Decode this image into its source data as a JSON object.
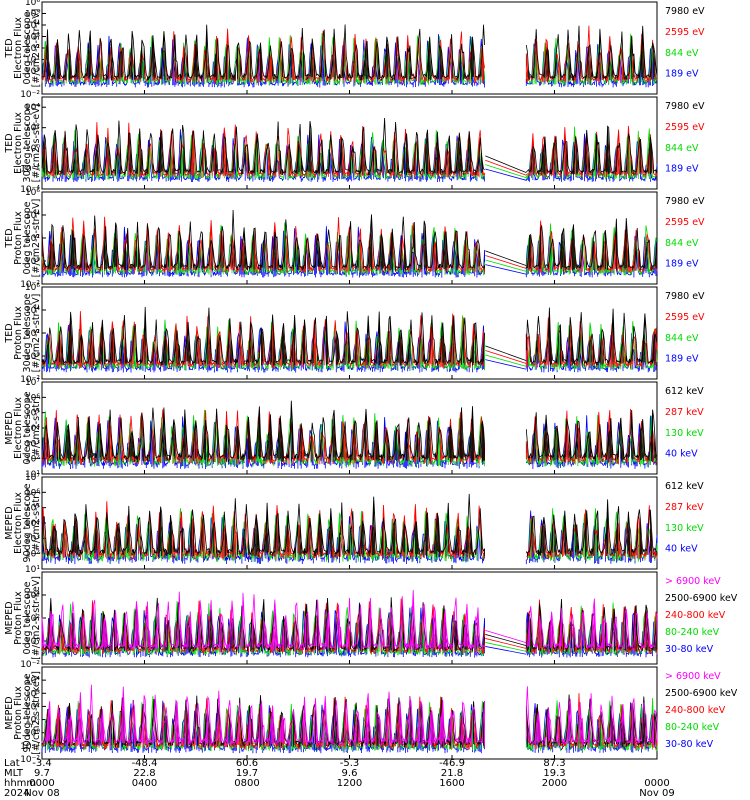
{
  "chart_data": [
    {
      "type": "line",
      "ylabel": [
        "TED",
        "Electron Flux",
        "0deg telescope",
        "[#/cm2-s-str-eV]"
      ],
      "ylim_exp": [
        -2,
        6
      ],
      "yticks": [
        "10⁻²",
        "10⁰",
        "10¹",
        "10²",
        "10³",
        "10⁴",
        "10⁵",
        "10⁶"
      ],
      "ytick_exp": [
        -2,
        0,
        1,
        2,
        3,
        4,
        5,
        6
      ],
      "log_scale": true,
      "series": [
        {
          "name": "7980 eV",
          "color": "#000000"
        },
        {
          "name": "2595 eV",
          "color": "#ff0000"
        },
        {
          "name": "844 eV",
          "color": "#00dd00"
        },
        {
          "name": "189 eV",
          "color": "#0000ff"
        }
      ]
    },
    {
      "type": "line",
      "ylabel": [
        "TED",
        "Electron Flux",
        "30deg telescope",
        "[#/cm2-s-str-eV]"
      ],
      "ylim_exp": [
        -4,
        5
      ],
      "yticks": [
        "10⁻⁴",
        "10⁻²",
        "10⁰",
        "10²",
        "10⁴"
      ],
      "ytick_exp": [
        -4,
        -2,
        0,
        2,
        4
      ],
      "log_scale": true,
      "series": [
        {
          "name": "7980 eV",
          "color": "#000000"
        },
        {
          "name": "2595 eV",
          "color": "#ff0000"
        },
        {
          "name": "844 eV",
          "color": "#00dd00"
        },
        {
          "name": "189 eV",
          "color": "#0000ff"
        }
      ]
    },
    {
      "type": "line",
      "ylabel": [
        "TED",
        "Proton Flux",
        "0deg telescope",
        "[#/cm2-s-str-eV]"
      ],
      "ylim_exp": [
        -2,
        6
      ],
      "yticks": [
        "10⁻²",
        "10⁰",
        "10²",
        "10⁴",
        "10⁶"
      ],
      "ytick_exp": [
        -2,
        0,
        2,
        4,
        6
      ],
      "log_scale": true,
      "series": [
        {
          "name": "7980 eV",
          "color": "#000000"
        },
        {
          "name": "2595 eV",
          "color": "#ff0000"
        },
        {
          "name": "844 eV",
          "color": "#00dd00"
        },
        {
          "name": "189 eV",
          "color": "#0000ff"
        }
      ]
    },
    {
      "type": "line",
      "ylabel": [
        "TED",
        "Proton Flux",
        "30deg telescope",
        "[#/cm2-s-str-eV]"
      ],
      "ylim_exp": [
        -2,
        6
      ],
      "yticks": [
        "10⁻²",
        "10⁰",
        "10²",
        "10⁴",
        "10⁶"
      ],
      "ytick_exp": [
        -2,
        0,
        2,
        4,
        6
      ],
      "log_scale": true,
      "series": [
        {
          "name": "7980 eV",
          "color": "#000000"
        },
        {
          "name": "2595 eV",
          "color": "#ff0000"
        },
        {
          "name": "844 eV",
          "color": "#00dd00"
        },
        {
          "name": "189 eV",
          "color": "#0000ff"
        }
      ]
    },
    {
      "type": "line",
      "ylabel": [
        "MEPED",
        "Electron Flux",
        "0deg telescope",
        "[#/cm2-s-str]"
      ],
      "ylim_exp": [
        1,
        7
      ],
      "yticks": [
        "10¹",
        "10²",
        "10³",
        "10⁴",
        "10⁵",
        "10⁶",
        "10⁷"
      ],
      "ytick_exp": [
        1,
        2,
        3,
        4,
        5,
        6,
        7
      ],
      "log_scale": true,
      "series": [
        {
          "name": "612 keV",
          "color": "#000000"
        },
        {
          "name": "287 keV",
          "color": "#ff0000"
        },
        {
          "name": "130 keV",
          "color": "#00dd00"
        },
        {
          "name": "40 keV",
          "color": "#0000ff"
        }
      ]
    },
    {
      "type": "line",
      "ylabel": [
        "MEPED",
        "Electron Flux",
        "90deg telescope",
        "[#/cm2-s-str]"
      ],
      "ylim_exp": [
        1,
        7
      ],
      "yticks": [
        "10¹",
        "10²",
        "10³",
        "10⁴",
        "10⁵",
        "10⁶",
        "10⁷"
      ],
      "ytick_exp": [
        1,
        2,
        3,
        4,
        5,
        6,
        7
      ],
      "log_scale": true,
      "series": [
        {
          "name": "612 keV",
          "color": "#000000"
        },
        {
          "name": "287 keV",
          "color": "#ff0000"
        },
        {
          "name": "130 keV",
          "color": "#00dd00"
        },
        {
          "name": "40 keV",
          "color": "#0000ff"
        }
      ]
    },
    {
      "type": "line",
      "ylabel": [
        "MEPED",
        "Proton Flux",
        "0deg telescope",
        "[#/cm2-s-str-keV]"
      ],
      "ylim_exp": [
        -2,
        6
      ],
      "yticks": [
        "10⁻²",
        "10⁰",
        "10²",
        "10⁴"
      ],
      "ytick_exp": [
        -2,
        0,
        2,
        4
      ],
      "log_scale": true,
      "series": [
        {
          "name": "> 6900 keV",
          "color": "#ff00ff"
        },
        {
          "name": "2500-6900 keV",
          "color": "#000000"
        },
        {
          "name": "240-800 keV",
          "color": "#ff0000"
        },
        {
          "name": "80-240 keV",
          "color": "#00dd00"
        },
        {
          "name": "30-80 keV",
          "color": "#0000ff"
        }
      ]
    },
    {
      "type": "line",
      "ylabel": [
        "MEPED",
        "Proton Flux",
        "90deg telescope",
        "[#/cm2-s-str-keV]"
      ],
      "ylim_exp": [
        -2,
        5
      ],
      "yticks": [
        "10⁻²",
        "10⁻¹",
        "10⁰",
        "10¹",
        "10²",
        "10³",
        "10⁴"
      ],
      "ytick_exp": [
        -2,
        -1,
        0,
        1,
        2,
        3,
        4
      ],
      "log_scale": true,
      "series": [
        {
          "name": "> 6900 keV",
          "color": "#ff00ff"
        },
        {
          "name": "2500-6900 keV",
          "color": "#000000"
        },
        {
          "name": "240-800 keV",
          "color": "#ff0000"
        },
        {
          "name": "80-240 keV",
          "color": "#00dd00"
        },
        {
          "name": "30-80 keV",
          "color": "#0000ff"
        }
      ]
    }
  ],
  "x_axis": {
    "row_labels": [
      "Lat",
      "MLT",
      "hhmm",
      "2024"
    ],
    "columns": [
      {
        "lat": "-3.4",
        "mlt": "9.7",
        "hhmm": "0000",
        "date": "Nov 08"
      },
      {
        "lat": "-48.4",
        "mlt": "22.8",
        "hhmm": "0400",
        "date": ""
      },
      {
        "lat": "60.6",
        "mlt": "19.7",
        "hhmm": "0800",
        "date": ""
      },
      {
        "lat": "-5.3",
        "mlt": "9.6",
        "hhmm": "1200",
        "date": ""
      },
      {
        "lat": "-46.9",
        "mlt": "21.8",
        "hhmm": "1600",
        "date": ""
      },
      {
        "lat": "87.3",
        "mlt": "19.3",
        "hhmm": "2000",
        "date": ""
      },
      {
        "lat": "",
        "mlt": "",
        "hhmm": "0000",
        "date": "Nov 09"
      }
    ],
    "hours_range": [
      0,
      24
    ],
    "data_gap_hours": [
      17.3,
      18.9
    ]
  }
}
